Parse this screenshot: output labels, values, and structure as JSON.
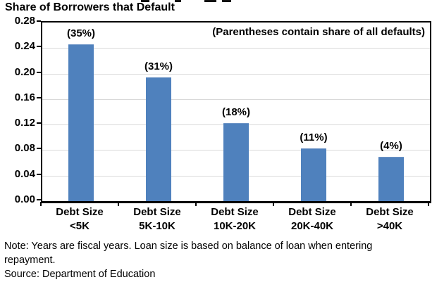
{
  "chart_data": {
    "type": "bar",
    "title": "Share of Borrowers that Default",
    "annotation": "(Parentheses contain share of all defaults)",
    "categories": [
      {
        "top": "Debt Size",
        "bottom": "<5K"
      },
      {
        "top": "Debt Size",
        "bottom": "5K-10K"
      },
      {
        "top": "Debt Size",
        "bottom": "10K-20K"
      },
      {
        "top": "Debt Size",
        "bottom": "20K-40K"
      },
      {
        "top": "Debt Size",
        "bottom": ">40K"
      }
    ],
    "values": [
      0.245,
      0.193,
      0.121,
      0.082,
      0.068
    ],
    "bar_labels": [
      "(35%)",
      "(31%)",
      "(18%)",
      "(11%)",
      "(4%)"
    ],
    "y_tick_labels": [
      "0.28",
      "0.24",
      "0.20",
      "0.16",
      "0.12",
      "0.08",
      "0.04",
      "0.00"
    ],
    "ylim": [
      0,
      0.28
    ],
    "y_step": 0.04,
    "xlabel": "",
    "ylabel": "",
    "grid": true,
    "legend": "none",
    "bar_color": "#4f81bd",
    "gridline_color": "#d9d9d9"
  },
  "notes": {
    "note": "Note: Years are fiscal years. Loan size is based on balance of loan when entering repayment.",
    "source": "Source: Department of Education"
  }
}
